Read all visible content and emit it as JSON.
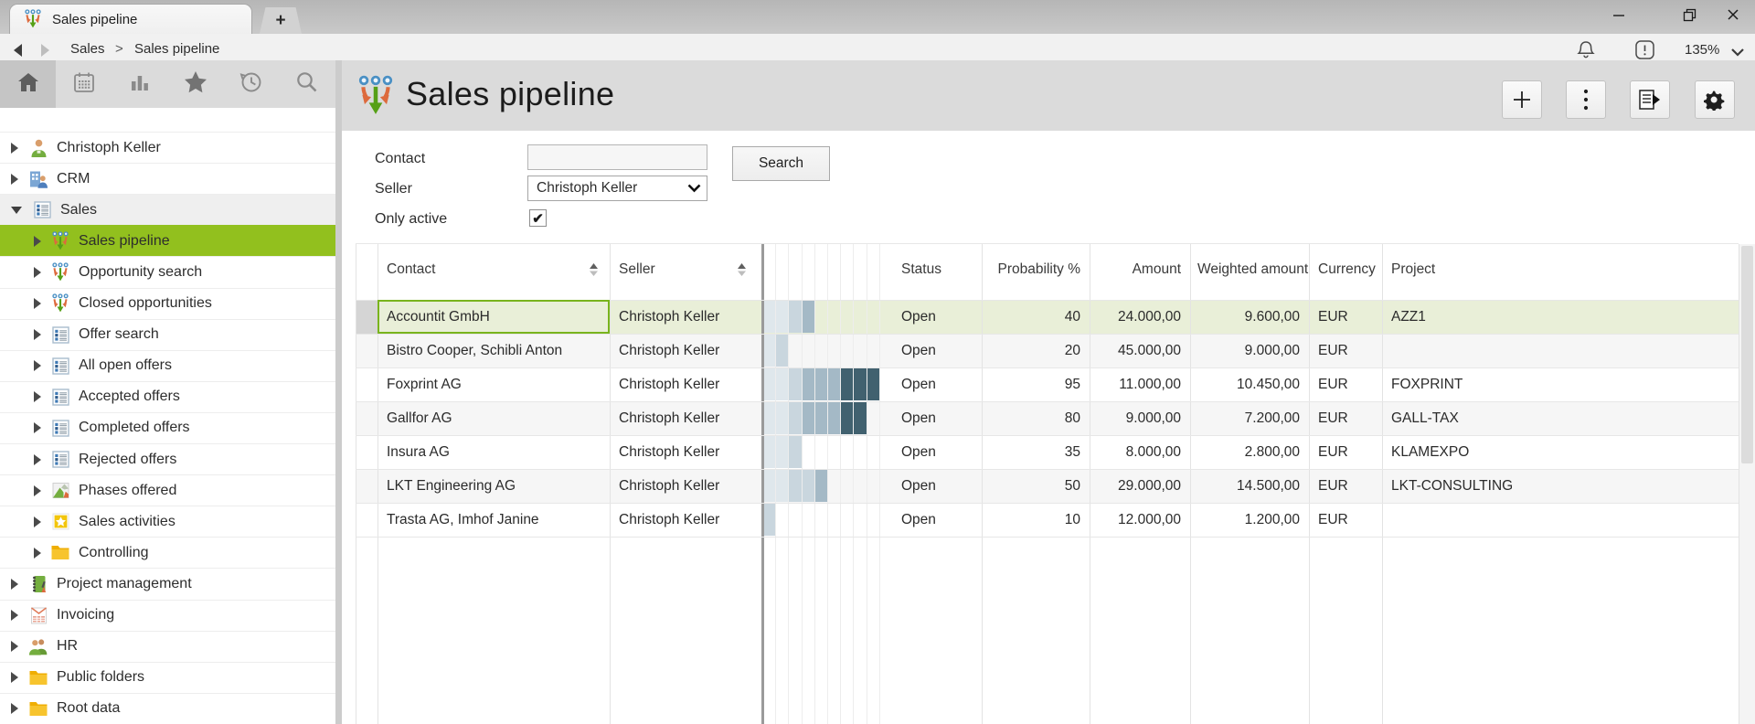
{
  "window": {
    "tab_title": "Sales pipeline",
    "new_tab_label": "+",
    "controls": {
      "minimize": "minimize",
      "restore": "restore",
      "close": "close"
    }
  },
  "breadcrumb": {
    "back": "back",
    "forward": "forward",
    "items": [
      "Sales",
      "Sales pipeline"
    ],
    "separator": ">",
    "zoom_level": "135%"
  },
  "sidebar": {
    "toolbar": [
      "home",
      "calendar",
      "chart",
      "star",
      "history",
      "search"
    ],
    "tree": [
      {
        "label": "Christoph Keller",
        "icon": "person",
        "level": 0,
        "state": "collapsed"
      },
      {
        "label": "CRM",
        "icon": "crm",
        "level": 0,
        "state": "collapsed"
      },
      {
        "label": "Sales",
        "icon": "list",
        "level": 0,
        "state": "expanded"
      },
      {
        "label": "Sales pipeline",
        "icon": "funnel",
        "level": 1,
        "state": "collapsed",
        "selected": true
      },
      {
        "label": "Opportunity search",
        "icon": "funnel",
        "level": 1,
        "state": "collapsed"
      },
      {
        "label": "Closed opportunities",
        "icon": "funnel",
        "level": 1,
        "state": "collapsed"
      },
      {
        "label": "Offer search",
        "icon": "list",
        "level": 1,
        "state": "collapsed"
      },
      {
        "label": "All open offers",
        "icon": "list",
        "level": 1,
        "state": "collapsed"
      },
      {
        "label": "Accepted offers",
        "icon": "list",
        "level": 1,
        "state": "collapsed"
      },
      {
        "label": "Completed offers",
        "icon": "list",
        "level": 1,
        "state": "collapsed"
      },
      {
        "label": "Rejected offers",
        "icon": "list",
        "level": 1,
        "state": "collapsed"
      },
      {
        "label": "Phases offered",
        "icon": "phases",
        "level": 1,
        "state": "collapsed"
      },
      {
        "label": "Sales activities",
        "icon": "starbox",
        "level": 1,
        "state": "collapsed"
      },
      {
        "label": "Controlling",
        "icon": "folder",
        "level": 1,
        "state": "collapsed"
      },
      {
        "label": "Project management",
        "icon": "notebook",
        "level": 0,
        "state": "collapsed"
      },
      {
        "label": "Invoicing",
        "icon": "invoice",
        "level": 0,
        "state": "collapsed"
      },
      {
        "label": "HR",
        "icon": "people",
        "level": 0,
        "state": "collapsed"
      },
      {
        "label": "Public folders",
        "icon": "folder",
        "level": 0,
        "state": "collapsed"
      },
      {
        "label": "Root data",
        "icon": "folder",
        "level": 0,
        "state": "collapsed"
      }
    ]
  },
  "main": {
    "title": "Sales pipeline",
    "form": {
      "contact_label": "Contact",
      "contact_value": "",
      "seller_label": "Seller",
      "seller_value": "Christoph Keller",
      "only_active_label": "Only active",
      "only_active_checked": true,
      "check_glyph": "✔",
      "search_button": "Search"
    },
    "table": {
      "columns": [
        "Contact",
        "Seller",
        "Status",
        "Probability %",
        "Amount",
        "Weighted amount",
        "Currency",
        "Project"
      ],
      "rows": [
        {
          "contact": "Accountit GmbH",
          "seller": "Christoph Keller",
          "status": "Open",
          "probability": "40",
          "amount": "24.000,00",
          "weighted": "9.600,00",
          "currency": "EUR",
          "project": "AZZ1",
          "selected": true,
          "pipeline_cells": [
            1,
            1,
            2,
            3,
            0,
            0,
            0,
            0,
            0,
            0
          ]
        },
        {
          "contact": "Bistro Cooper, Schibli Anton",
          "seller": "Christoph Keller",
          "status": "Open",
          "probability": "20",
          "amount": "45.000,00",
          "weighted": "9.000,00",
          "currency": "EUR",
          "project": "",
          "selected": false,
          "pipeline_cells": [
            1,
            2,
            0,
            0,
            0,
            0,
            0,
            0,
            0,
            0
          ]
        },
        {
          "contact": "Foxprint AG",
          "seller": "Christoph Keller",
          "status": "Open",
          "probability": "95",
          "amount": "11.000,00",
          "weighted": "10.450,00",
          "currency": "EUR",
          "project": "FOXPRINT",
          "selected": false,
          "pipeline_cells": [
            1,
            1,
            2,
            3,
            3,
            3,
            4,
            4,
            4,
            0
          ]
        },
        {
          "contact": "Gallfor AG",
          "seller": "Christoph Keller",
          "status": "Open",
          "probability": "80",
          "amount": "9.000,00",
          "weighted": "7.200,00",
          "currency": "EUR",
          "project": "GALL-TAX",
          "selected": false,
          "pipeline_cells": [
            1,
            1,
            2,
            3,
            3,
            3,
            4,
            4,
            0,
            0
          ]
        },
        {
          "contact": "Insura AG",
          "seller": "Christoph Keller",
          "status": "Open",
          "probability": "35",
          "amount": "8.000,00",
          "weighted": "2.800,00",
          "currency": "EUR",
          "project": "KLAMEXPO",
          "selected": false,
          "pipeline_cells": [
            1,
            1,
            2,
            0,
            0,
            0,
            0,
            0,
            0,
            0
          ]
        },
        {
          "contact": "LKT Engineering AG",
          "seller": "Christoph Keller",
          "status": "Open",
          "probability": "50",
          "amount": "29.000,00",
          "weighted": "14.500,00",
          "currency": "EUR",
          "project": "LKT-CONSULTING",
          "selected": false,
          "pipeline_cells": [
            1,
            1,
            2,
            2,
            3,
            0,
            0,
            0,
            0,
            0
          ]
        },
        {
          "contact": "Trasta AG, Imhof Janine",
          "seller": "Christoph Keller",
          "status": "Open",
          "probability": "10",
          "amount": "12.000,00",
          "weighted": "1.200,00",
          "currency": "EUR",
          "project": "",
          "selected": false,
          "pipeline_cells": [
            2,
            0,
            0,
            0,
            0,
            0,
            0,
            0,
            0,
            0
          ]
        }
      ]
    }
  },
  "colors": {
    "accent_green": "#92c01e",
    "selected_row_bg": "#e9efd8",
    "selection_border": "#79b41d",
    "row_alt_bg": "#f6f6f6",
    "pipeline_levels": [
      "",
      "#dfe7ec",
      "#c9d6de",
      "#a4b9c6",
      "#41616f"
    ]
  }
}
